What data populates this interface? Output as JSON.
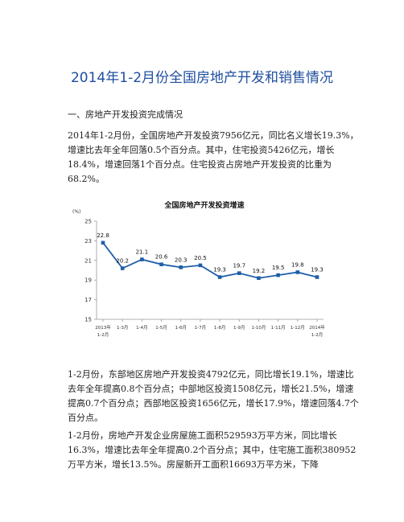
{
  "document": {
    "title": "2014年1-2月份全国房地产开发和销售情况",
    "section_heading": "一、房地产开发投资完成情况",
    "paragraphs": [
      "2014年1-2月份，全国房地产开发投资7956亿元，同比名义增长19.3%，增速比去年全年回落0.5个百分点。其中，住宅投资5426亿元，增长18.4%，增速回落1个百分点。住宅投资占房地产开发投资的比重为68.2%。",
      "1-2月份，东部地区房地产开发投资4792亿元，同比增长19.1%，增速比去年全年提高0.8个百分点；中部地区投资1508亿元，增长21.5%，增速提高0.7个百分点；西部地区投资1656亿元，增长17.9%，增速回落4.7个百分点。",
      "1-2月份，房地产开发企业房屋施工面积529593万平方米，同比增长16.3%，增速比去年全年提高0.2个百分点；其中，住宅施工面积380952万平方米，增长13.5%。房屋新开工面积16693万平方米，下降"
    ]
  },
  "chart_data": {
    "type": "line",
    "title": "全国房地产开发投资增速",
    "ylabel": "(%)",
    "xlabel": "",
    "categories": [
      [
        "2013年",
        "1-2月"
      ],
      [
        "1-3月"
      ],
      [
        "1-4月"
      ],
      [
        "1-5月"
      ],
      [
        "1-6月"
      ],
      [
        "1-7月"
      ],
      [
        "1-8月"
      ],
      [
        "1-9月"
      ],
      [
        "1-10月"
      ],
      [
        "1-11月"
      ],
      [
        "1-12月"
      ],
      [
        "2014年",
        "1-2月"
      ]
    ],
    "values": [
      22.8,
      20.2,
      21.1,
      20.6,
      20.3,
      20.5,
      19.3,
      19.7,
      19.2,
      19.5,
      19.8,
      19.3
    ],
    "value_labels": [
      "22.8",
      "20.2",
      "21.1",
      "20.6",
      "20.3",
      "20.5",
      "19.3",
      "19.7",
      "19.2",
      "19.5",
      "19.8",
      "19.3"
    ],
    "yticks": [
      15,
      17,
      19,
      21,
      23,
      25
    ],
    "ylim": [
      15,
      25
    ],
    "grid": false,
    "legend": "none",
    "line_color": "#1f5fa8"
  }
}
